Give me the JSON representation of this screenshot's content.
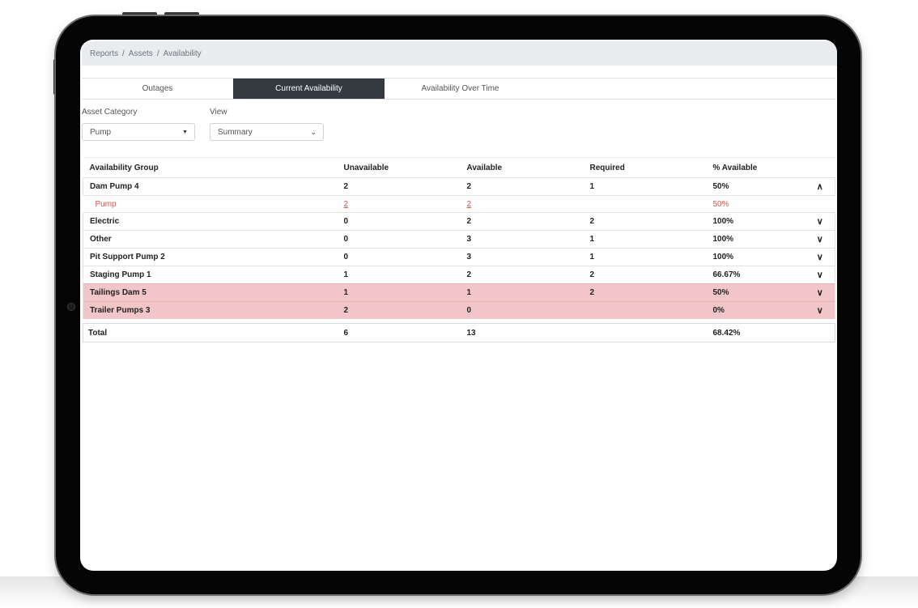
{
  "breadcrumb": {
    "items": [
      "Reports",
      "Assets",
      "Availability"
    ],
    "separator": "/"
  },
  "tabs": [
    {
      "label": "Outages",
      "active": false
    },
    {
      "label": "Current Availability",
      "active": true
    },
    {
      "label": "Availability Over Time",
      "active": false
    }
  ],
  "filters": {
    "asset_category": {
      "label": "Asset Category",
      "value": "Pump"
    },
    "view": {
      "label": "View",
      "value": "Summary"
    }
  },
  "table": {
    "columns": [
      "Availability Group",
      "Unavailable",
      "Available",
      "Required",
      "% Available"
    ],
    "rows": [
      {
        "group": "Dam Pump 4",
        "unavailable": "2",
        "available": "2",
        "required": "1",
        "pct": "50%",
        "expanded": true,
        "children": [
          {
            "group": "Pump",
            "unavailable": "2",
            "available": "2",
            "required": "",
            "pct": "50%"
          }
        ]
      },
      {
        "group": "Electric",
        "unavailable": "0",
        "available": "2",
        "required": "2",
        "pct": "100%",
        "expanded": false
      },
      {
        "group": "Other",
        "unavailable": "0",
        "available": "3",
        "required": "1",
        "pct": "100%",
        "expanded": false
      },
      {
        "group": "Pit Support Pump 2",
        "unavailable": "0",
        "available": "3",
        "required": "1",
        "pct": "100%",
        "expanded": false
      },
      {
        "group": "Staging Pump 1",
        "unavailable": "1",
        "available": "2",
        "required": "2",
        "pct": "66.67%",
        "expanded": false
      },
      {
        "group": "Tailings Dam 5",
        "unavailable": "1",
        "available": "1",
        "required": "2",
        "pct": "50%",
        "expanded": false,
        "highlight": true
      },
      {
        "group": "Trailer Pumps 3",
        "unavailable": "2",
        "available": "0",
        "required": "",
        "pct": "0%",
        "expanded": false,
        "highlight": true
      }
    ],
    "total": {
      "label": "Total",
      "unavailable": "6",
      "available": "13",
      "required": "",
      "pct": "68.42%"
    }
  },
  "colors": {
    "active_tab": "#343a40",
    "breadcrumb_bg": "#e9ecef",
    "warning_row": "#f2c6c9",
    "sub_row_text": "#d9534f"
  },
  "icons": {
    "expanded": "chevron-up-icon",
    "collapsed": "chevron-down-icon",
    "select": "caret-down-icon"
  }
}
